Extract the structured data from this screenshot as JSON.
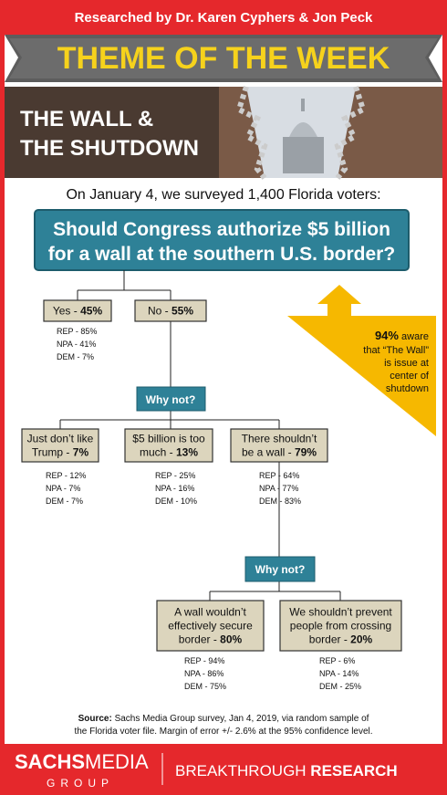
{
  "header": {
    "credit": "Researched by Dr. Karen Cyphers & Jon Peck",
    "banner": "THEME OF THE WEEK",
    "title_lines": [
      "THE WALL &",
      "THE SHUTDOWN"
    ]
  },
  "intro": "On January 4, we surveyed 1,400 Florida voters:",
  "question": [
    "Should Congress authorize $5 billion",
    "for a wall at the southern U.S. border?"
  ],
  "callout": {
    "pct": "94%",
    "lines": [
      " aware",
      "that “The Wall”",
      "is issue at",
      "center of",
      "shutdown"
    ]
  },
  "why_not": [
    "Why not?",
    "Why not?"
  ],
  "nodes": [
    {
      "lines": [
        "Yes - "
      ],
      "pct": "45%",
      "breakdown": [
        "REP - 85%",
        "NPA - 41%",
        "DEM - 7%"
      ]
    },
    {
      "lines": [
        "No - "
      ],
      "pct": "55%",
      "breakdown": []
    },
    {
      "lines": [
        "Just don’t like",
        "Trump - "
      ],
      "pct": "7%",
      "breakdown": [
        "REP - 12%",
        "NPA - 7%",
        "DEM - 7%"
      ]
    },
    {
      "lines": [
        "$5 billion is too",
        "much - "
      ],
      "pct": "13%",
      "breakdown": [
        "REP - 25%",
        "NPA - 16%",
        "DEM - 10%"
      ]
    },
    {
      "lines": [
        "There shouldn’t",
        "be a wall - "
      ],
      "pct": "79%",
      "breakdown": [
        "REP - 64%",
        "NPA - 77%",
        "DEM - 83%"
      ]
    },
    {
      "lines": [
        "A wall wouldn’t",
        "effectively secure",
        "border - "
      ],
      "pct": "80%",
      "breakdown": [
        "REP - 94%",
        "NPA - 86%",
        "DEM - 75%"
      ]
    },
    {
      "lines": [
        "We shouldn’t prevent",
        "people from crossing",
        "border - "
      ],
      "pct": "20%",
      "breakdown": [
        "REP - 6%",
        "NPA - 14%",
        "DEM - 25%"
      ]
    }
  ],
  "source": {
    "label": "Source:",
    "lines": [
      " Sachs Media Group survey, Jan 4, 2019, via random sample of",
      "the Florida voter file. Margin of error +/- 2.6% at the 95% confidence level."
    ]
  },
  "footer": {
    "brand": [
      "SACHS",
      "MEDIA"
    ],
    "group": "GROUP",
    "tagline": [
      "BREAKTHROUGH ",
      "RESEARCH"
    ]
  }
}
